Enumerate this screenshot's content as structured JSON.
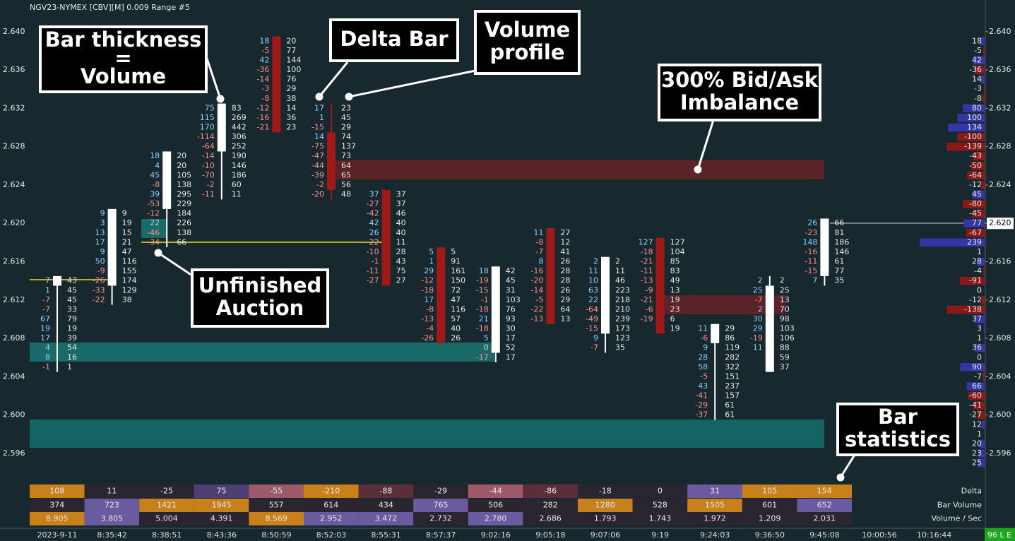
{
  "header": {
    "title": "NGV23-NYMEX [CBV][M]  0.009 Range  #5"
  },
  "price_axis": {
    "ylim": [
      2.5932,
      2.6433
    ],
    "yticks": [
      {
        "value": 2.64,
        "label": "2.640"
      },
      2.636,
      2.632,
      2.628,
      2.624,
      {
        "value": 2.62,
        "label": "2.620"
      },
      2.616,
      2.612,
      2.608,
      2.604,
      {
        "value": 2.6,
        "label": "2.600"
      },
      2.596
    ],
    "last_price": {
      "value": 2.62,
      "label": "2.620"
    }
  },
  "time_axis": {
    "labels": [
      "2023-9-11",
      "8:35:42",
      "8:38:51",
      "8:43:36",
      "8:50:59",
      "8:52:03",
      "8:55:31",
      "8:57:37",
      "9:02:16",
      "9:05:18",
      "9:07:06",
      "9:19",
      "9:24:03",
      "9:36:50",
      "9:45:08",
      "10:00:56",
      "10:16:44"
    ]
  },
  "bars": [
    {
      "top": 2.614,
      "delta": [
        7,
        1,
        -7,
        -7,
        67,
        19,
        17,
        4,
        8,
        -1
      ],
      "volume": [
        43,
        45,
        45,
        33,
        79,
        19,
        39,
        54,
        16,
        1
      ],
      "open": 2.614,
      "close": 2.614,
      "high": 2.614,
      "low": 2.605
    },
    {
      "top": 2.621,
      "delta": [
        9,
        3,
        13,
        17,
        9,
        50,
        -9,
        -26,
        -33,
        -22
      ],
      "volume": [
        9,
        19,
        15,
        21,
        47,
        116,
        155,
        174,
        129,
        38
      ],
      "open": 2.614,
      "close": 2.621,
      "high": 2.621,
      "low": 2.612
    },
    {
      "top": 2.627,
      "delta": [
        18,
        4,
        45,
        -8,
        39,
        -53,
        -12,
        22,
        -46,
        -34
      ],
      "volume": [
        20,
        20,
        105,
        138,
        295,
        229,
        184,
        226,
        138,
        66
      ],
      "open": 2.622,
      "close": 2.627,
      "high": 2.627,
      "low": 2.618
    },
    {
      "top": 2.632,
      "delta": [
        75,
        115,
        170,
        -114,
        -64,
        -14,
        -10,
        -70,
        -2,
        -11
      ],
      "volume": [
        83,
        269,
        442,
        306,
        252,
        190,
        146,
        186,
        60,
        11
      ],
      "open": 2.628,
      "close": 2.632,
      "high": 2.632,
      "low": 2.623
    },
    {
      "top": 2.639,
      "delta": [
        18,
        -5,
        42,
        -36,
        -14,
        -3,
        -8,
        -12,
        -16,
        -21
      ],
      "volume": [
        20,
        77,
        144,
        100,
        76,
        29,
        38,
        14,
        36,
        23
      ],
      "open": 2.639,
      "close": 2.63,
      "high": 2.639,
      "low": 2.63
    },
    {
      "top": 2.632,
      "delta": [
        17,
        1,
        -15,
        14,
        -75,
        -47,
        -44,
        -39,
        -2,
        -20
      ],
      "volume": [
        23,
        45,
        29,
        74,
        137,
        73,
        64,
        65,
        56,
        48
      ],
      "open": 2.629,
      "close": 2.624,
      "high": 2.632,
      "low": 2.623
    },
    {
      "top": 2.623,
      "delta": [
        37,
        -27,
        -42,
        42,
        26,
        -22,
        -10,
        -1,
        -11,
        -27
      ],
      "volume": [
        37,
        37,
        46,
        40,
        40,
        11,
        28,
        43,
        75,
        27
      ],
      "open": 2.623,
      "close": 2.614,
      "high": 2.623,
      "low": 2.614
    },
    {
      "top": 2.617,
      "delta": [
        5,
        1,
        29,
        -12,
        -18,
        17,
        -8,
        -13,
        -4,
        -26
      ],
      "volume": [
        5,
        91,
        161,
        150,
        72,
        47,
        116,
        57,
        40,
        26
      ],
      "open": 2.617,
      "close": 2.608,
      "high": 2.617,
      "low": 2.608
    },
    {
      "top": 2.615,
      "delta": [
        18,
        -19,
        -15,
        -1,
        -18,
        21,
        -18,
        5,
        0,
        -17
      ],
      "volume": [
        42,
        45,
        31,
        103,
        76,
        93,
        30,
        17,
        52,
        17
      ],
      "open": 2.607,
      "close": 2.615,
      "high": 2.615,
      "low": 2.606
    },
    {
      "top": 2.619,
      "delta": [
        11,
        -8,
        -7,
        8,
        -16,
        -20,
        -14,
        -5,
        -22,
        -13
      ],
      "volume": [
        27,
        12,
        41,
        26,
        28,
        28,
        26,
        29,
        64,
        13
      ],
      "open": 2.619,
      "close": 2.61,
      "high": 2.619,
      "low": 2.61
    },
    {
      "top": 2.616,
      "delta": [
        2,
        11,
        10,
        63,
        22,
        -64,
        -49,
        -15,
        9,
        -7
      ],
      "volume": [
        2,
        11,
        46,
        223,
        218,
        210,
        239,
        173,
        123,
        35
      ],
      "open": 2.609,
      "close": 2.616,
      "high": 2.616,
      "low": 2.607
    },
    {
      "top": 2.618,
      "delta": [
        127,
        -18,
        -21,
        -11,
        -13,
        -9,
        -21,
        -6,
        -19
      ],
      "volume": [
        127,
        104,
        85,
        83,
        49,
        13,
        19,
        23,
        6,
        19
      ],
      "open": 2.618,
      "close": 2.609,
      "high": 2.618,
      "low": 2.609
    },
    {
      "top": 2.609,
      "delta": [
        11,
        -6,
        9,
        28,
        58,
        -5,
        43,
        -41,
        -29,
        -37
      ],
      "volume": [
        29,
        86,
        119,
        282,
        322,
        151,
        237,
        157,
        61,
        61
      ],
      "open": 2.608,
      "close": 2.609,
      "high": 2.609,
      "low": 2.6
    },
    {
      "top": 2.614,
      "delta": [
        2,
        25,
        -7,
        2,
        30,
        29,
        -19,
        11
      ],
      "volume": [
        2,
        25,
        13,
        70,
        98,
        103,
        106,
        88,
        59,
        37
      ],
      "open": 2.605,
      "close": 2.613,
      "high": 2.614,
      "low": 2.605
    },
    {
      "top": 2.62,
      "delta": [
        26,
        -23,
        148,
        -16,
        -11,
        -15,
        7
      ],
      "volume": [
        66,
        81,
        186,
        146,
        61,
        77,
        35
      ],
      "open": 2.615,
      "close": 2.62,
      "high": 2.62,
      "low": 2.614
    }
  ],
  "volume_profile": {
    "top": 2.639,
    "values": [
      18,
      -5,
      42,
      -36,
      14,
      -3,
      -8,
      80,
      100,
      134,
      -100,
      -139,
      -43,
      -50,
      -64,
      -12,
      45,
      -80,
      -45,
      77,
      -67,
      239,
      1,
      28,
      -4,
      -91,
      0,
      -12,
      -138,
      37,
      3,
      1,
      36,
      0,
      90,
      -7,
      66,
      -60,
      -41,
      -27,
      12,
      1,
      20,
      23,
      25
    ],
    "positive_color": "#3535a5",
    "negative_color": "#8a1a1a"
  },
  "stats": {
    "rows": [
      {
        "label": "Delta",
        "values": [
          108,
          11,
          -25,
          75,
          -55,
          -210,
          -88,
          -29,
          -44,
          -86,
          -18,
          0,
          31,
          105,
          154
        ],
        "colors": [
          "#c8801a",
          "#2a2630",
          "#2a2630",
          "#4b3f74",
          "#9c5a6a",
          "#c8801a",
          "#5a2f3a",
          "#2a2630",
          "#9c5a6a",
          "#5a2f3a",
          "#2a2630",
          "#2a2630",
          "#6a5aa0",
          "#c8801a",
          "#c8801a"
        ]
      },
      {
        "label": "Bar Volume",
        "values": [
          374,
          723,
          1421,
          1945,
          557,
          614,
          434,
          765,
          506,
          282,
          1280,
          528,
          1505,
          601,
          652
        ],
        "colors": [
          "#2a2630",
          "#6a5aa0",
          "#c8801a",
          "#c8801a",
          "#2a2630",
          "#2a2630",
          "#2a2630",
          "#6a5aa0",
          "#2a2630",
          "#2a2630",
          "#c8801a",
          "#2a2630",
          "#c8801a",
          "#2a2630",
          "#6a5aa0"
        ]
      },
      {
        "label": "Volume / Sec",
        "values": [
          8.905,
          3.805,
          5.004,
          4.391,
          8.569,
          2.952,
          3.472,
          2.732,
          2.78,
          2.686,
          1.793,
          1.743,
          1.972,
          1.209,
          2.031
        ],
        "value_labels": [
          "8.905",
          "3.805",
          "5.004",
          "4.391",
          "8.569",
          "2.952",
          "3.472",
          "2.732",
          "2.780",
          "2.686",
          "1.793",
          "1.743",
          "1.972",
          "1.209",
          "2.031"
        ],
        "colors": [
          "#c8801a",
          "#6a5aa0",
          "#2a2630",
          "#2a2630",
          "#c8801a",
          "#6a5aa0",
          "#6a5aa0",
          "#2a2630",
          "#6a5aa0",
          "#2a2630",
          "#2a2630",
          "#2a2630",
          "#2a2630",
          "#2a2630",
          "#2a2630"
        ]
      }
    ]
  },
  "annotations": [
    {
      "lines": [
        "Bar thickness",
        "=",
        "Volume"
      ]
    },
    {
      "lines": [
        "Delta Bar"
      ]
    },
    {
      "lines": [
        "Volume",
        "profile"
      ]
    },
    {
      "lines": [
        "300% Bid/Ask",
        "Imbalance"
      ]
    },
    {
      "lines": [
        "Unfinished",
        "Auction"
      ]
    },
    {
      "lines": [
        "Bar",
        "statistics"
      ]
    }
  ],
  "status": "96 L E"
}
